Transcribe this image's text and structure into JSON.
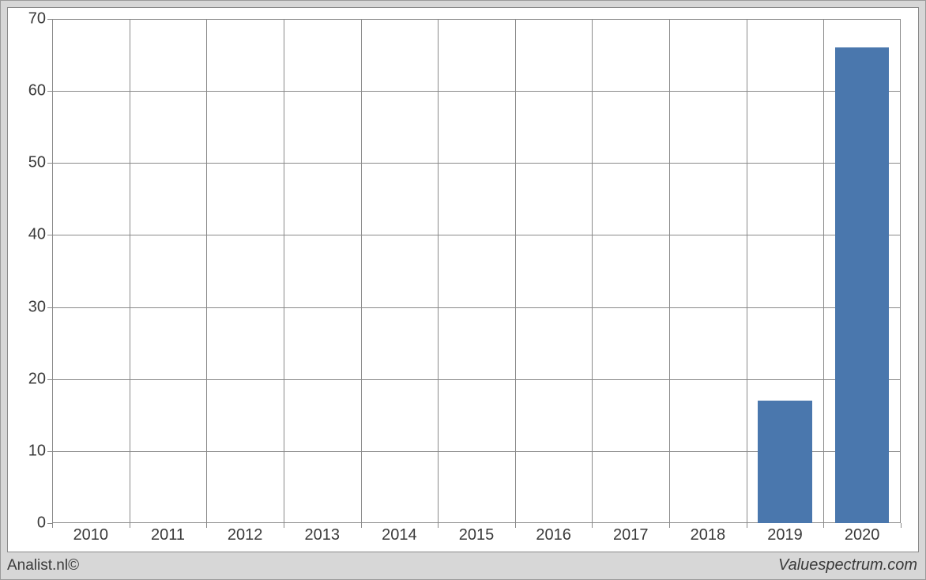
{
  "chart": {
    "type": "bar",
    "background_color": "#ffffff",
    "outer_background_color": "#d7d7d7",
    "grid_color": "#8a8a8a",
    "axis_color": "#8a8a8a",
    "bar_color": "#4a77ad",
    "bar_width_ratio": 0.7,
    "label_fontsize": 20,
    "label_color": "#3a3a3a",
    "ylim": [
      0,
      70
    ],
    "ytick_step": 10,
    "yticks": [
      "0",
      "10",
      "20",
      "30",
      "40",
      "50",
      "60",
      "70"
    ],
    "categories": [
      "2010",
      "2011",
      "2012",
      "2013",
      "2014",
      "2015",
      "2016",
      "2017",
      "2018",
      "2019",
      "2020"
    ],
    "values": [
      0,
      0,
      0,
      0,
      0,
      0,
      0,
      0,
      0,
      17,
      66
    ]
  },
  "footer": {
    "left": "Analist.nl©",
    "right": "Valuespectrum.com"
  }
}
